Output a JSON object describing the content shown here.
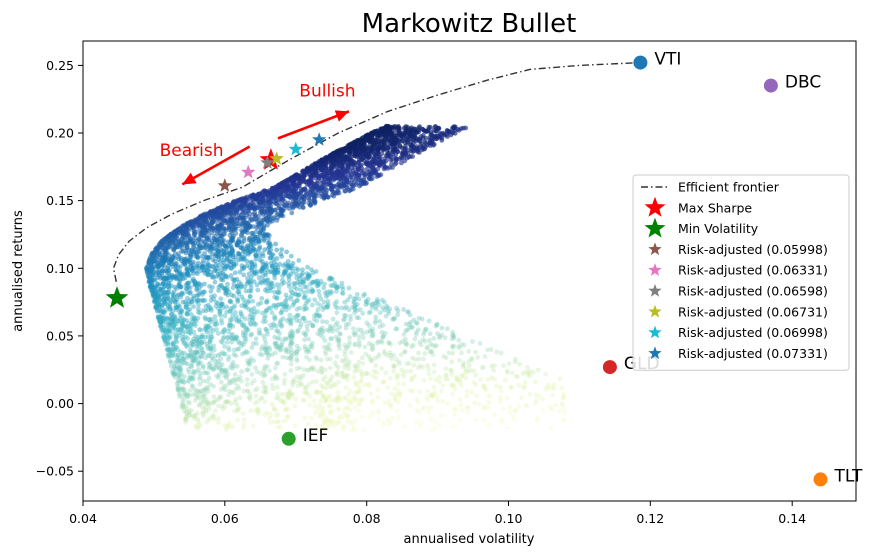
{
  "chart_data": {
    "type": "scatter",
    "title": "Markowitz Bullet",
    "xlabel": "annualised volatility",
    "ylabel": "annualised returns",
    "xlim": [
      0.04,
      0.149
    ],
    "ylim": [
      -0.072,
      0.268
    ],
    "xticks": [
      0.04,
      0.06,
      0.08,
      0.1,
      0.12,
      0.14
    ],
    "xtick_labels": [
      "0.04",
      "0.06",
      "0.08",
      "0.10",
      "0.12",
      "0.14"
    ],
    "yticks": [
      -0.05,
      0.0,
      0.05,
      0.1,
      0.15,
      0.2,
      0.25
    ],
    "ytick_labels": [
      "−0.05",
      "0.00",
      "0.05",
      "0.10",
      "0.15",
      "0.20",
      "0.25"
    ],
    "grid": false,
    "legend_position": "center-right",
    "efficient_frontier": {
      "label": "Efficient frontier",
      "color": "#333333",
      "points": [
        [
          0.0447,
          0.09
        ],
        [
          0.0443,
          0.1
        ],
        [
          0.045,
          0.11
        ],
        [
          0.0465,
          0.12
        ],
        [
          0.049,
          0.13
        ],
        [
          0.0525,
          0.14
        ],
        [
          0.057,
          0.15
        ],
        [
          0.0625,
          0.16
        ],
        [
          0.069,
          0.18
        ],
        [
          0.076,
          0.2
        ],
        [
          0.083,
          0.216
        ],
        [
          0.09,
          0.228
        ],
        [
          0.097,
          0.239
        ],
        [
          0.103,
          0.247
        ],
        [
          0.11,
          0.25
        ],
        [
          0.1186,
          0.252
        ]
      ]
    },
    "random_portfolios": {
      "cmap": [
        "#f7fcb9",
        "#d9f0a3",
        "#7fcdbb",
        "#41b6c4",
        "#1d91c0",
        "#225ea8",
        "#253494",
        "#081d58"
      ]
    },
    "assets": [
      {
        "label": "VTI",
        "x": 0.1186,
        "y": 0.252,
        "color": "#1f77b4"
      },
      {
        "label": "DBC",
        "x": 0.137,
        "y": 0.235,
        "color": "#9467bd"
      },
      {
        "label": "GLD",
        "x": 0.1143,
        "y": 0.027,
        "color": "#d62728"
      },
      {
        "label": "IEF",
        "x": 0.069,
        "y": -0.026,
        "color": "#2ca02c"
      },
      {
        "label": "TLT",
        "x": 0.144,
        "y": -0.056,
        "color": "#ff7f0e"
      }
    ],
    "highlights": [
      {
        "label": "Max Sharpe",
        "x": 0.0665,
        "y": 0.18,
        "color": "#ff0000",
        "size": "large"
      },
      {
        "label": "Min Volatility",
        "x": 0.0448,
        "y": 0.078,
        "color": "#008000",
        "size": "large"
      },
      {
        "label": "Risk-adjusted (0.05998)",
        "x": 0.06,
        "y": 0.161,
        "color": "#8c564b",
        "size": "small"
      },
      {
        "label": "Risk-adjusted (0.06331)",
        "x": 0.0633,
        "y": 0.171,
        "color": "#e377c2",
        "size": "small"
      },
      {
        "label": "Risk-adjusted (0.06598)",
        "x": 0.066,
        "y": 0.178,
        "color": "#7f7f7f",
        "size": "small"
      },
      {
        "label": "Risk-adjusted (0.06731)",
        "x": 0.0673,
        "y": 0.181,
        "color": "#bcbd22",
        "size": "small"
      },
      {
        "label": "Risk-adjusted (0.06998)",
        "x": 0.07,
        "y": 0.188,
        "color": "#17becf",
        "size": "small"
      },
      {
        "label": "Risk-adjusted (0.07331)",
        "x": 0.0733,
        "y": 0.195,
        "color": "#1f77b4",
        "size": "small"
      }
    ],
    "annotations": [
      {
        "text": "Bullish",
        "color": "#ff0000",
        "arrow_from": [
          0.0675,
          0.196
        ],
        "arrow_to": [
          0.0775,
          0.216
        ],
        "text_at": [
          0.0705,
          0.227
        ]
      },
      {
        "text": "Bearish",
        "color": "#ff0000",
        "arrow_from": [
          0.0635,
          0.19
        ],
        "arrow_to": [
          0.054,
          0.162
        ],
        "text_at": [
          0.0508,
          0.183
        ]
      }
    ]
  }
}
